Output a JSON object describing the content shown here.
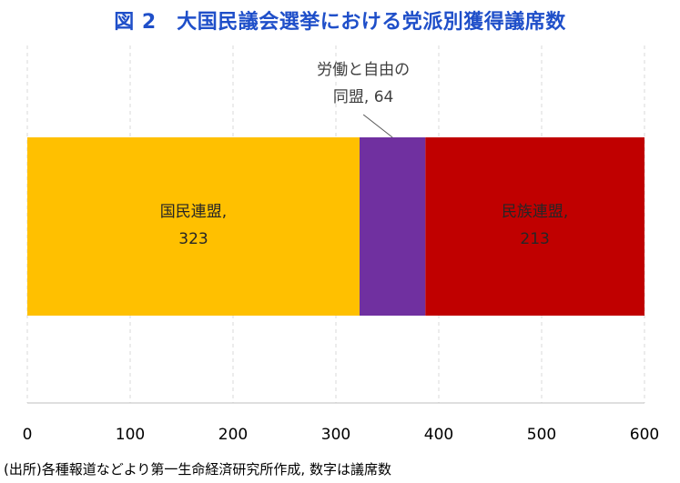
{
  "title": "図 2　大国民議会選挙における党派別獲得議席数",
  "source_note": "(出所)各種報道などより第一生命経済研究所作成, 数字は議席数",
  "chart_data": {
    "type": "bar",
    "orientation": "horizontal",
    "stacked": true,
    "categories": [
      ""
    ],
    "xlim": [
      0,
      600
    ],
    "xticks": [
      0,
      100,
      200,
      300,
      400,
      500,
      600
    ],
    "grid": "vertical-dashed",
    "legend": "none",
    "series": [
      {
        "name": "国民連盟",
        "values": [
          323
        ],
        "color": "#FFC000",
        "label_lines": [
          "国民連盟,",
          "323"
        ],
        "label_position": "inside"
      },
      {
        "name": "労働と自由の同盟",
        "values": [
          64
        ],
        "color": "#7030A0",
        "label_lines": [
          "労働と自由の",
          "同盟, 64"
        ],
        "label_position": "callout-above"
      },
      {
        "name": "民族連盟",
        "values": [
          213
        ],
        "color": "#C00000",
        "label_lines": [
          "民族連盟,",
          "213"
        ],
        "label_position": "inside"
      }
    ]
  }
}
